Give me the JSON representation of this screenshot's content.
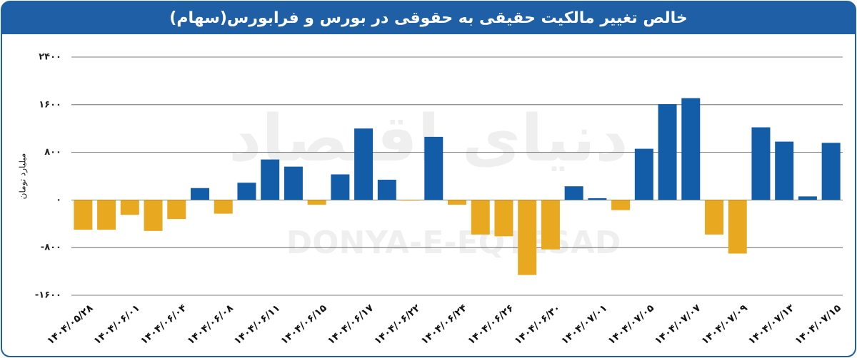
{
  "chart_data": {
    "type": "bar",
    "title": "خالص تغییر مالکیت حقیقی به حقوقی در بورس و فرابورس(سهام)",
    "y_label": "میلیارد تومان",
    "watermark": [
      "دنیای اقتصاد",
      "DONYA-E-EQTESAD"
    ],
    "categories": [
      "۱۴۰۴/۰۵/۲۸",
      null,
      "۱۴۰۴/۰۶/۰۱",
      null,
      "۱۴۰۴/۰۶/۰۴",
      null,
      "۱۴۰۴/۰۶/۰۸",
      null,
      "۱۴۰۴/۰۶/۱۱",
      null,
      "۱۴۰۴/۰۶/۱۵",
      null,
      "۱۴۰۴/۰۶/۱۷",
      null,
      "۱۴۰۴/۰۶/۲۲",
      null,
      "۱۴۰۴/۰۶/۲۴",
      null,
      "۱۴۰۴/۰۶/۲۶",
      null,
      "۱۴۰۴/۰۶/۳۰",
      null,
      "۱۴۰۴/۰۷/۰۱",
      null,
      "۱۴۰۴/۰۷/۰۵",
      null,
      "۱۴۰۴/۰۷/۰۷",
      null,
      "۱۴۰۴/۰۷/۰۹",
      null,
      "۱۴۰۴/۰۷/۱۳",
      null,
      "۱۴۰۴/۰۷/۱۵"
    ],
    "values": [
      -500,
      -500,
      -250,
      -520,
      -320,
      200,
      -230,
      290,
      680,
      560,
      -80,
      430,
      1200,
      340,
      -10,
      1060,
      -80,
      -580,
      -610,
      -1260,
      -830,
      230,
      30,
      -170,
      860,
      1610,
      1710,
      -580,
      -900,
      1220,
      980,
      60,
      960
    ],
    "positive_color": "#135ca8",
    "negative_color": "#e8a820",
    "ylim": [
      -1600,
      2400
    ],
    "yticks": [
      {
        "value": -1600,
        "label": "-۱۶۰۰"
      },
      {
        "value": -800,
        "label": "-۸۰۰"
      },
      {
        "value": 0,
        "label": "۰"
      },
      {
        "value": 800,
        "label": "۸۰۰"
      },
      {
        "value": 1600,
        "label": "۱۶۰۰"
      },
      {
        "value": 2400,
        "label": "۲۴۰۰"
      }
    ],
    "grid": true
  }
}
